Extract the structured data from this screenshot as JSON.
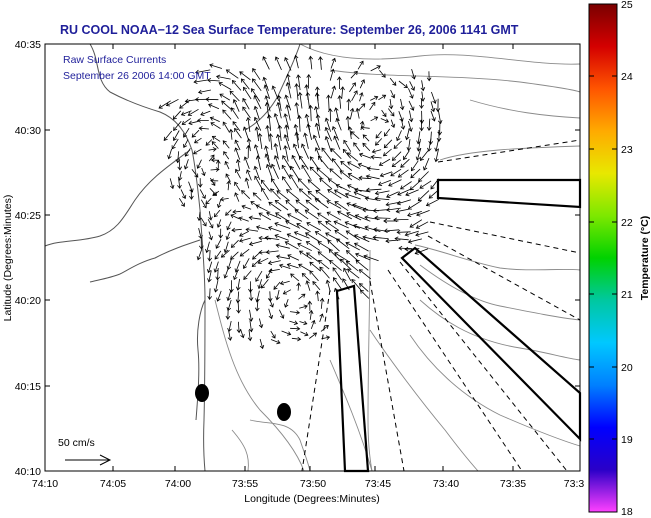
{
  "title": "RU COOL  NOAA−12  Sea Surface Temperature:  September 26, 2006 1141 GMT",
  "inset": {
    "line1": "Raw Surface Currents",
    "line2": "September 26 2006 14:00 GMT"
  },
  "scale_label": "50 cm/s",
  "axes": {
    "xlabel": "Longitude (Degrees:Minutes)",
    "ylabel": "Latitude (Degrees:Minutes)",
    "xticks": [
      "74:10",
      "74:05",
      "74:00",
      "73:55",
      "73:50",
      "73:45",
      "73:40",
      "73:35",
      "73:3"
    ],
    "yticks": [
      "40:35",
      "40:30",
      "40:25",
      "40:20",
      "40:15",
      "40:10"
    ]
  },
  "colorbar": {
    "label": "Temperature (°C)",
    "ticks": [
      "25",
      "24",
      "23",
      "22",
      "21",
      "20",
      "19",
      "18"
    ],
    "colors": [
      "#7a0000",
      "#d40000",
      "#ff5500",
      "#ffaa00",
      "#e8e800",
      "#7de800",
      "#00d200",
      "#00c8a0",
      "#00c8ff",
      "#0080ff",
      "#0000ff",
      "#2a00c8",
      "#ff40ff"
    ]
  },
  "chart_data": {
    "type": "map",
    "x_range": [
      "74:10",
      "73:3"
    ],
    "y_range": [
      "40:10",
      "40:35"
    ],
    "colorbar_range": [
      18,
      25
    ]
  },
  "colors": {
    "title_text": "#1f1f9a",
    "coast": "#555555",
    "contour": "#8a8a8a"
  }
}
